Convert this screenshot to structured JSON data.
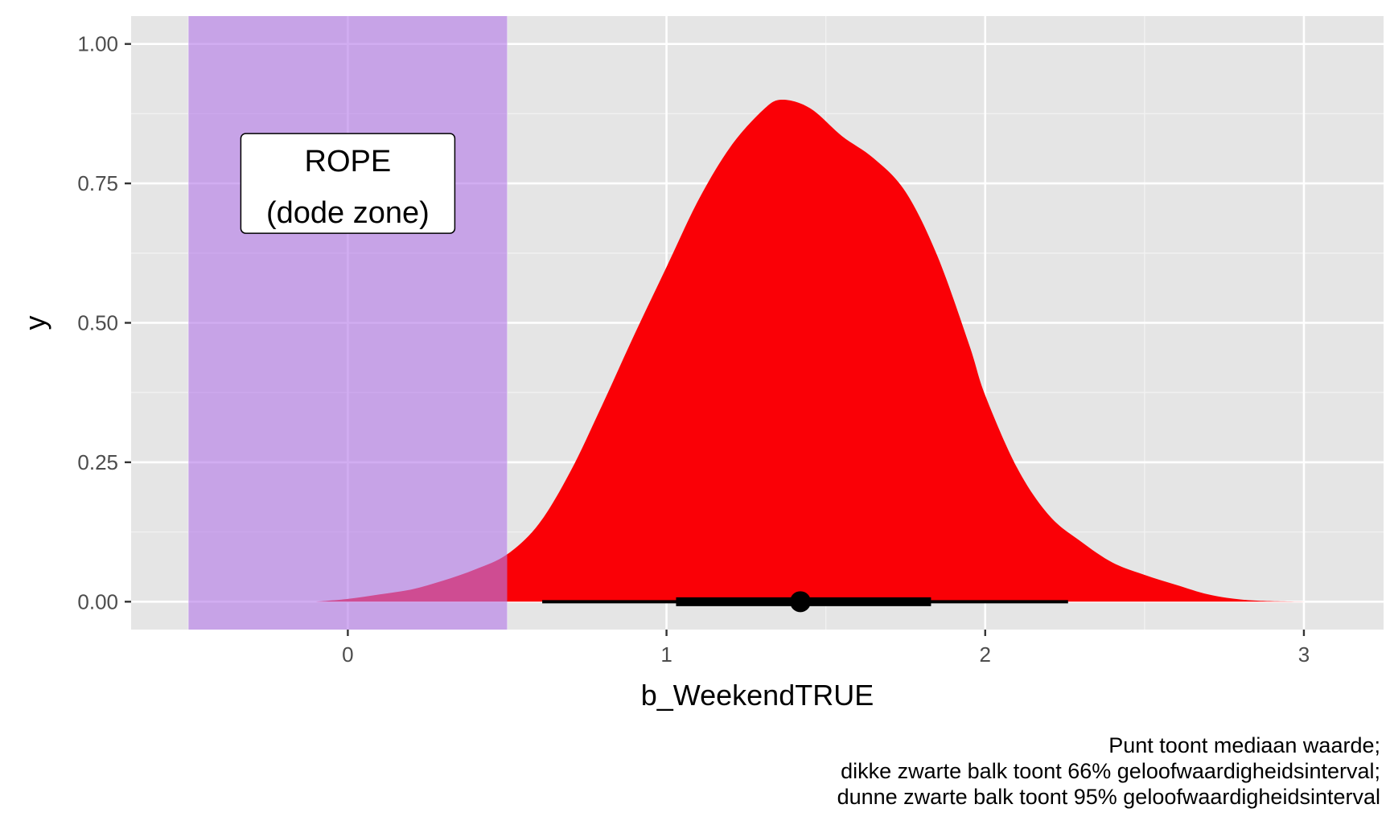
{
  "chart_data": {
    "type": "area",
    "xlabel": "b_WeekendTRUE",
    "ylabel": "y",
    "xlim": [
      -0.68,
      3.25
    ],
    "ylim": [
      -0.05,
      1.05
    ],
    "x_ticks": [
      0,
      1,
      2,
      3
    ],
    "x_tick_labels": [
      "0",
      "1",
      "2",
      "3"
    ],
    "y_ticks": [
      0,
      0.25,
      0.5,
      0.75,
      1.0
    ],
    "y_tick_labels": [
      "0.00",
      "0.25",
      "0.50",
      "0.75",
      "1.00"
    ],
    "grid": true,
    "rope": {
      "xmin": -0.5,
      "xmax": 0.5,
      "color": "#b57be8",
      "label_lines": [
        "ROPE",
        "(dode zone)"
      ],
      "label_x": 0.0,
      "label_y": 0.75
    },
    "density": {
      "color": "#fa0006",
      "rope_overlap_color": "#8a0044",
      "x": [
        -0.1,
        0.0,
        0.1,
        0.2,
        0.3,
        0.4,
        0.5,
        0.6,
        0.7,
        0.8,
        0.9,
        1.0,
        1.1,
        1.2,
        1.3,
        1.36,
        1.45,
        1.55,
        1.65,
        1.75,
        1.85,
        1.95,
        2.0,
        2.1,
        2.2,
        2.3,
        2.4,
        2.5,
        2.6,
        2.7,
        2.8,
        2.9,
        3.05
      ],
      "y": [
        0.0,
        0.005,
        0.013,
        0.022,
        0.038,
        0.058,
        0.085,
        0.14,
        0.235,
        0.355,
        0.48,
        0.6,
        0.72,
        0.815,
        0.88,
        0.9,
        0.885,
        0.835,
        0.795,
        0.735,
        0.62,
        0.46,
        0.37,
        0.24,
        0.155,
        0.108,
        0.07,
        0.048,
        0.03,
        0.013,
        0.004,
        0.001,
        0.0
      ]
    },
    "point_interval": {
      "median": 1.42,
      "interval_66": [
        1.03,
        1.83
      ],
      "interval_95": [
        0.61,
        2.26
      ],
      "color": "#000000"
    }
  },
  "caption": {
    "lines": [
      "Punt toont mediaan waarde;",
      "dikke zwarte balk toont 66% geloofwaardigheidsinterval;",
      "dunne zwarte balk toont 95% geloofwaardigheidsinterval"
    ]
  }
}
